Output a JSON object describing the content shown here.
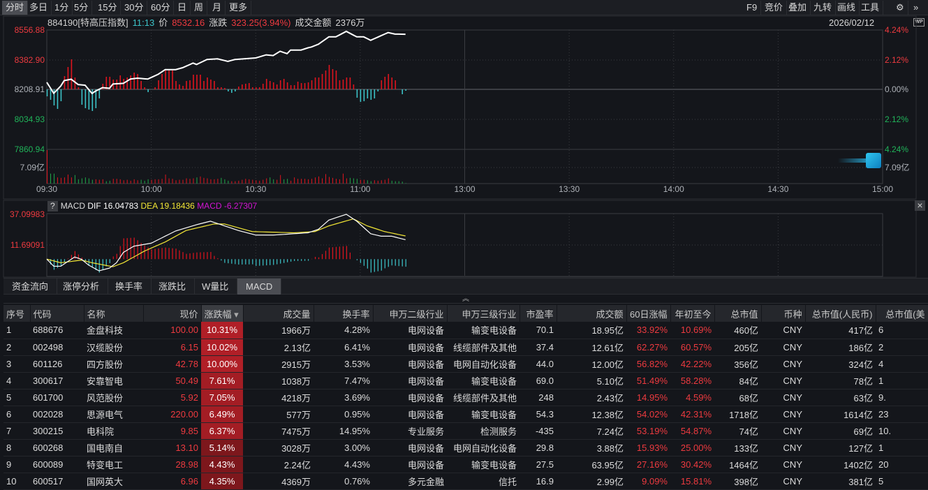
{
  "toolbar": {
    "periods": [
      "分时",
      "多日",
      "1分",
      "5分",
      "15分",
      "30分",
      "60分",
      "日",
      "周",
      "月",
      "更多"
    ],
    "active": "分时",
    "right": [
      "F9",
      "竞价",
      "叠加",
      "九转",
      "画线",
      "工具"
    ],
    "settings_icon": "gear-icon",
    "expand_icon": "double-chevron-right-icon"
  },
  "info": {
    "code_name": "884190[特高压指数]",
    "time": "11:13",
    "price_label": "价",
    "price": "8532.16",
    "change_label": "涨跌",
    "change": "323.25(3.94%)",
    "amount_label": "成交金额",
    "amount": "2376万",
    "date": "2026/02/12",
    "wp_icon": "wp-monitor-icon"
  },
  "colors": {
    "up": "#ee3a3f",
    "down": "#20b45a",
    "cyan": "#3cc3c8",
    "dif": "#ffffff",
    "dea": "#f2e635",
    "macd": "#d414d4",
    "bg": "#14161b"
  },
  "chart_data": [
    {
      "type": "line",
      "name_shown": "884190[特高压指数]",
      "y_left_ticks": [
        "8556.88",
        "8382.90",
        "8208.91",
        "8034.93",
        "7860.94"
      ],
      "y_right_ticks": [
        "4.24%",
        "2.12%",
        "0.00%",
        "2.12%",
        "4.24%"
      ],
      "ylim": [
        7860.94,
        8556.88
      ],
      "pre_close": 8208.91,
      "x_ticks": [
        "09:30",
        "10:00",
        "10:30",
        "11:00",
        "13:00",
        "13:30",
        "14:00",
        "14:30",
        "15:00"
      ],
      "price": [
        [
          "09:30",
          8252
        ],
        [
          "09:32",
          8188
        ],
        [
          "09:34",
          8230
        ],
        [
          "09:35",
          8262
        ],
        [
          "09:37",
          8270
        ],
        [
          "09:39",
          8239
        ],
        [
          "09:41",
          8235
        ],
        [
          "09:43",
          8187
        ],
        [
          "09:44",
          8201
        ],
        [
          "09:46",
          8221
        ],
        [
          "09:48",
          8217
        ],
        [
          "09:49",
          8242
        ],
        [
          "09:52",
          8246
        ],
        [
          "09:54",
          8271
        ],
        [
          "09:56",
          8276
        ],
        [
          "09:59",
          8271
        ],
        [
          "10:02",
          8299
        ],
        [
          "10:04",
          8326
        ],
        [
          "10:07",
          8326
        ],
        [
          "10:09",
          8337
        ],
        [
          "10:12",
          8364
        ],
        [
          "10:13",
          8356
        ],
        [
          "10:16",
          8385
        ],
        [
          "10:19",
          8389
        ],
        [
          "10:22",
          8374
        ],
        [
          "10:24",
          8385
        ],
        [
          "10:30",
          8394
        ],
        [
          "10:33",
          8412
        ],
        [
          "10:35",
          8408
        ],
        [
          "10:37",
          8433
        ],
        [
          "10:39",
          8419
        ],
        [
          "10:40",
          8440
        ],
        [
          "10:43",
          8440
        ],
        [
          "10:45",
          8453
        ],
        [
          "10:46",
          8458
        ],
        [
          "10:48",
          8474
        ],
        [
          "10:51",
          8517
        ],
        [
          "10:53",
          8517
        ],
        [
          "10:56",
          8549
        ],
        [
          "10:59",
          8517
        ],
        [
          "11:01",
          8517
        ],
        [
          "11:03",
          8497
        ],
        [
          "11:05",
          8515
        ],
        [
          "11:08",
          8542
        ],
        [
          "11:10",
          8533
        ],
        [
          "11:13",
          8532.16
        ]
      ],
      "indicator_bars": [
        -10,
        -15,
        -23,
        -28,
        -17,
        19,
        32,
        43,
        17,
        3,
        -22,
        -27,
        -29,
        -31,
        -27,
        -13,
        8,
        18,
        18,
        14,
        14,
        20,
        15,
        17,
        20,
        24,
        22,
        12,
        3,
        -4,
        0,
        3,
        13,
        22,
        27,
        27,
        27,
        12,
        7,
        5,
        12,
        13,
        21,
        21,
        21,
        12,
        17,
        14,
        12,
        3,
        3,
        2,
        -3,
        -5,
        -3,
        4,
        7,
        8,
        9,
        3,
        3,
        3,
        8,
        15,
        12,
        10,
        7,
        13,
        15,
        10,
        6,
        6,
        11,
        9,
        9,
        10,
        13,
        17,
        17,
        22,
        27,
        35,
        29,
        27,
        13,
        14,
        17,
        17,
        7,
        -12,
        -18,
        -17,
        -13,
        -15,
        -13,
        -3,
        13,
        18,
        22,
        17,
        13,
        0,
        -7,
        -2
      ],
      "volume_label": "7.09亿",
      "volume_yi": [
        14.8,
        2.1,
        2.1,
        1.3,
        1.2,
        1.3,
        1.9,
        1.3,
        1.8,
        0.9,
        1.1,
        1.3,
        1.1,
        0.8,
        0.9,
        0.8,
        0.9,
        0.5,
        0.6,
        1.0,
        1.0,
        0.9,
        0.7,
        0.8,
        0.6,
        0.9,
        0.7,
        0.8,
        0.6,
        0.9,
        0.8,
        0.9,
        0.9,
        1.0,
        1.9,
        1.1,
        1.0,
        0.7,
        0.8,
        0.8,
        1.1,
        1.0,
        1.1,
        1.3,
        1.5,
        1.2,
        1.1,
        0.9,
        0.9,
        1.0,
        1.2,
        0.9,
        0.6,
        0.5,
        0.5,
        0.6,
        0.8,
        1.0,
        0.9,
        0.8,
        0.7,
        0.6,
        0.8,
        1.1,
        1.3,
        0.9,
        0.8,
        1.8,
        0.9,
        1.0,
        0.6,
        1.3,
        1.0,
        1.0,
        1.0,
        0.9,
        1.0,
        1.3,
        1.5,
        1.1,
        2.0,
        1.4,
        1.2,
        1.0,
        0.9,
        2.1,
        1.1,
        1.2,
        1.1,
        1.0,
        0.8,
        0.8,
        0.7,
        0.5,
        0.7,
        0.6,
        0.7,
        0.8,
        1.1,
        0.6,
        0.5,
        0.5,
        0.4,
        0.1
      ]
    },
    {
      "type": "line",
      "title": "MACD",
      "dif_label": "DIF 16.04783",
      "dea_label": "DEA 19.18436",
      "macd_label": "MACD -6.27307",
      "y_ticks": [
        "37.09983",
        "11.69091"
      ],
      "dif": [
        [
          "09:30",
          0
        ],
        [
          "09:32",
          -5.9
        ],
        [
          "09:34",
          -5.9
        ],
        [
          "09:38",
          1.8
        ],
        [
          "09:40",
          -0.2
        ],
        [
          "09:42",
          -4.9
        ],
        [
          "09:45",
          -9.7
        ],
        [
          "09:48",
          -7.4
        ],
        [
          "09:50",
          -3.0
        ],
        [
          "09:52",
          5.6
        ],
        [
          "09:55",
          10.7
        ],
        [
          "10:00",
          13.2
        ],
        [
          "10:04",
          19.0
        ],
        [
          "10:07",
          23.3
        ],
        [
          "10:13",
          28.5
        ],
        [
          "10:17",
          31.4
        ],
        [
          "10:22",
          26.6
        ],
        [
          "10:25",
          23.7
        ],
        [
          "10:30",
          19.9
        ],
        [
          "10:35",
          19.9
        ],
        [
          "10:45",
          21.8
        ],
        [
          "10:48",
          24.7
        ],
        [
          "10:51",
          32.3
        ],
        [
          "10:56",
          37.1
        ],
        [
          "10:59",
          31.4
        ],
        [
          "11:03",
          21.0
        ],
        [
          "11:06",
          19.0
        ],
        [
          "11:09",
          19.0
        ],
        [
          "11:13",
          16.04783
        ]
      ],
      "dea": [
        [
          "09:30",
          0
        ],
        [
          "09:34",
          -3.0
        ],
        [
          "09:40",
          -0.8
        ],
        [
          "09:43",
          -3.0
        ],
        [
          "09:49",
          -6.3
        ],
        [
          "09:52",
          -3.0
        ],
        [
          "09:58",
          6.6
        ],
        [
          "10:04",
          14.2
        ],
        [
          "10:10",
          23.7
        ],
        [
          "10:18",
          29.1
        ],
        [
          "10:21",
          29.1
        ],
        [
          "10:29",
          22.8
        ],
        [
          "10:41",
          21.8
        ],
        [
          "10:47",
          22.8
        ],
        [
          "10:51",
          27.5
        ],
        [
          "10:58",
          33.3
        ],
        [
          "11:02",
          27.5
        ],
        [
          "11:07",
          22.8
        ],
        [
          "11:13",
          19.18436
        ]
      ]
    }
  ],
  "subtabs": [
    "资金流向",
    "涨停分析",
    "换手率",
    "涨跌比",
    "W量比",
    "MACD"
  ],
  "subtab_active": "MACD",
  "table": {
    "headers": [
      "序号",
      "代码",
      "名称",
      "现价",
      "涨跌幅",
      "成交量",
      "换手率",
      "申万二级行业",
      "申万三级行业",
      "市盈率",
      "成交额",
      "60日涨幅",
      "年初至今",
      "总市值",
      "币种",
      "总市值(人民币)",
      "总市值(美"
    ],
    "sort_icon": "sort-desc-icon",
    "rows": [
      [
        "1",
        "688676",
        "金盘科技",
        "100.00",
        "10.31%",
        "1966万",
        "4.28%",
        "电网设备",
        "输变电设备",
        "70.1",
        "18.95亿",
        "33.92%",
        "10.69%",
        "460亿",
        "CNY",
        "417亿",
        "6"
      ],
      [
        "2",
        "002498",
        "汉缆股份",
        "6.15",
        "10.02%",
        "2.13亿",
        "6.41%",
        "电网设备",
        "线缆部件及其他",
        "37.4",
        "12.61亿",
        "62.27%",
        "60.57%",
        "205亿",
        "CNY",
        "186亿",
        "2"
      ],
      [
        "3",
        "601126",
        "四方股份",
        "42.78",
        "10.00%",
        "2915万",
        "3.53%",
        "电网设备",
        "电网自动化设备",
        "44.0",
        "12.00亿",
        "56.82%",
        "42.22%",
        "356亿",
        "CNY",
        "324亿",
        "4"
      ],
      [
        "4",
        "300617",
        "安靠智电",
        "50.49",
        "7.61%",
        "1038万",
        "7.47%",
        "电网设备",
        "输变电设备",
        "69.0",
        "5.10亿",
        "51.49%",
        "58.28%",
        "84亿",
        "CNY",
        "78亿",
        "1"
      ],
      [
        "5",
        "601700",
        "风范股份",
        "5.92",
        "7.05%",
        "4218万",
        "3.69%",
        "电网设备",
        "线缆部件及其他",
        "248",
        "2.43亿",
        "14.95%",
        "4.59%",
        "68亿",
        "CNY",
        "63亿",
        "9."
      ],
      [
        "6",
        "002028",
        "思源电气",
        "220.00",
        "6.49%",
        "577万",
        "0.95%",
        "电网设备",
        "输变电设备",
        "54.3",
        "12.38亿",
        "54.02%",
        "42.31%",
        "1718亿",
        "CNY",
        "1614亿",
        "23"
      ],
      [
        "7",
        "300215",
        "电科院",
        "9.85",
        "6.37%",
        "7475万",
        "14.95%",
        "专业服务",
        "检测服务",
        "-435",
        "7.24亿",
        "53.19%",
        "54.87%",
        "74亿",
        "CNY",
        "69亿",
        "10."
      ],
      [
        "8",
        "600268",
        "国电南自",
        "13.10",
        "5.14%",
        "3028万",
        "3.00%",
        "电网设备",
        "电网自动化设备",
        "29.8",
        "3.88亿",
        "15.93%",
        "25.00%",
        "133亿",
        "CNY",
        "127亿",
        "1"
      ],
      [
        "9",
        "600089",
        "特变电工",
        "28.98",
        "4.43%",
        "2.24亿",
        "4.43%",
        "电网设备",
        "输变电设备",
        "27.5",
        "63.95亿",
        "27.16%",
        "30.42%",
        "1464亿",
        "CNY",
        "1402亿",
        "20"
      ],
      [
        "10",
        "600517",
        "国网英大",
        "6.96",
        "4.35%",
        "4369万",
        "0.76%",
        "多元金融",
        "信托",
        "16.9",
        "2.99亿",
        "9.09%",
        "15.81%",
        "398亿",
        "CNY",
        "381亿",
        "5"
      ]
    ]
  }
}
